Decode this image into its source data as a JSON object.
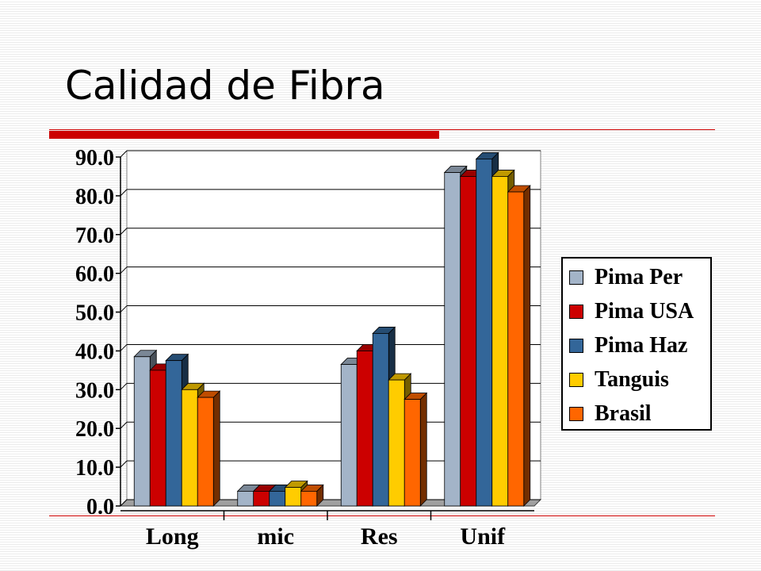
{
  "slide": {
    "title": "Calidad de Fibra"
  },
  "chart_data": {
    "type": "bar",
    "title": "",
    "xlabel": "",
    "ylabel": "",
    "categories": [
      "Long",
      "mic",
      "Res",
      "Unif"
    ],
    "y_ticks": [
      "0.0",
      "10.0",
      "20.0",
      "30.0",
      "40.0",
      "50.0",
      "60.0",
      "70.0",
      "80.0",
      "90.0"
    ],
    "ylim": [
      0,
      90
    ],
    "grid": true,
    "legend_position": "right",
    "series": [
      {
        "name": "Pima Per",
        "color": "#a3b4c8",
        "values": [
          38.5,
          3.8,
          36.5,
          86.0
        ]
      },
      {
        "name": "Pima USA",
        "color": "#cc0000",
        "values": [
          35.0,
          3.8,
          40.0,
          85.0
        ]
      },
      {
        "name": "Pima Haz",
        "color": "#336699",
        "values": [
          37.5,
          3.8,
          44.5,
          89.5
        ]
      },
      {
        "name": "Tanguis",
        "color": "#ffcc00",
        "values": [
          30.0,
          4.8,
          32.5,
          85.0
        ]
      },
      {
        "name": "Brasil",
        "color": "#ff6600",
        "values": [
          28.0,
          3.8,
          27.5,
          81.0
        ]
      }
    ]
  }
}
